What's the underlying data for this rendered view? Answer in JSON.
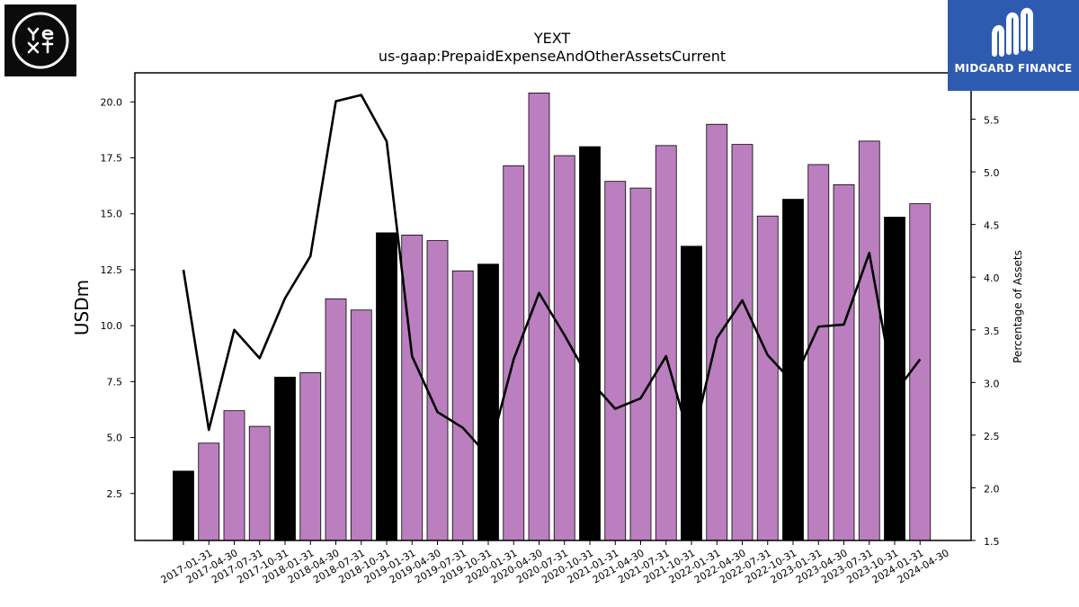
{
  "header": {
    "company": "YEXT",
    "metric": "us-gaap:PrepaidExpenseAndOtherAssetsCurrent"
  },
  "logos": {
    "left_text": "YEXT",
    "right_text": "MIDGARD FINANCE"
  },
  "colors": {
    "bar_regular": "#bb7fbf",
    "bar_highlight": "#000000",
    "line": "#000000",
    "logo_left_bg": "#0b0b0b",
    "logo_right_bg": "#2d5bb0"
  },
  "chart_data": {
    "type": "bar",
    "title": "YEXT",
    "subtitle": "us-gaap:PrepaidExpenseAndOtherAssetsCurrent",
    "ylabel": "USDm",
    "y2label": "Percentage of Assets",
    "ylim": [
      0.4,
      21.3
    ],
    "y2lim": [
      1.5,
      5.94
    ],
    "yticks": [
      2.5,
      5.0,
      7.5,
      10.0,
      12.5,
      15.0,
      17.5,
      20.0
    ],
    "y2ticks": [
      1.5,
      2.0,
      2.5,
      3.0,
      3.5,
      4.0,
      4.5,
      5.0,
      5.5
    ],
    "grid": false,
    "categories": [
      "2017-01-31",
      "2017-04-30",
      "2017-07-31",
      "2017-10-31",
      "2018-01-31",
      "2018-04-30",
      "2018-07-31",
      "2018-10-31",
      "2019-01-31",
      "2019-04-30",
      "2019-07-31",
      "2019-10-31",
      "2020-01-31",
      "2020-04-30",
      "2020-07-31",
      "2020-10-31",
      "2021-01-31",
      "2021-04-30",
      "2021-07-31",
      "2021-10-31",
      "2022-01-31",
      "2022-04-30",
      "2022-07-31",
      "2022-10-31",
      "2023-01-31",
      "2023-04-30",
      "2023-07-31",
      "2023-10-31",
      "2024-01-31",
      "2024-04-30"
    ],
    "series": [
      {
        "kind": "bar",
        "axis": "left",
        "values": [
          3.5,
          4.75,
          6.2,
          5.5,
          7.7,
          7.9,
          11.2,
          10.7,
          14.15,
          14.05,
          13.8,
          12.45,
          12.75,
          17.15,
          20.4,
          17.6,
          18.0,
          16.45,
          16.15,
          18.05,
          13.55,
          19.0,
          18.1,
          14.9,
          15.65,
          17.2,
          16.3,
          18.25,
          14.85,
          15.45
        ],
        "highlight": [
          true,
          false,
          false,
          false,
          true,
          false,
          false,
          false,
          true,
          false,
          false,
          false,
          true,
          false,
          false,
          false,
          true,
          false,
          false,
          false,
          true,
          false,
          false,
          false,
          true,
          false,
          false,
          false,
          true,
          false
        ]
      },
      {
        "kind": "line",
        "axis": "right",
        "values": [
          4.07,
          2.55,
          3.5,
          3.23,
          3.8,
          4.2,
          5.67,
          5.73,
          5.29,
          3.25,
          2.72,
          2.57,
          2.3,
          3.22,
          3.85,
          3.45,
          3.02,
          2.75,
          2.85,
          3.25,
          2.4,
          3.42,
          3.78,
          3.26,
          3.0,
          3.53,
          3.55,
          4.23,
          2.9,
          3.22
        ]
      }
    ]
  }
}
